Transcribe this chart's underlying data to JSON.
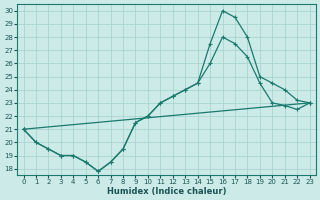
{
  "xlabel": "Humidex (Indice chaleur)",
  "bg_color": "#cceae7",
  "grid_color": "#aad4d0",
  "line_color": "#1a7a6e",
  "xlim": [
    -0.5,
    23.5
  ],
  "ylim": [
    17.5,
    30.5
  ],
  "xticks": [
    0,
    1,
    2,
    3,
    4,
    5,
    6,
    7,
    8,
    9,
    10,
    11,
    12,
    13,
    14,
    15,
    16,
    17,
    18,
    19,
    20,
    21,
    22,
    23
  ],
  "yticks": [
    18,
    19,
    20,
    21,
    22,
    23,
    24,
    25,
    26,
    27,
    28,
    29,
    30
  ],
  "line1_x": [
    0,
    1,
    2,
    3,
    4,
    5,
    6,
    7,
    8,
    9,
    10,
    11,
    12,
    13,
    14,
    15,
    16,
    17,
    18,
    19,
    20,
    21,
    22,
    23
  ],
  "line1_y": [
    21,
    20,
    19.5,
    19,
    19,
    18.5,
    17.8,
    18.5,
    19.5,
    21.5,
    22,
    23,
    23.5,
    24,
    24.5,
    27.5,
    30,
    29.5,
    28,
    25,
    24.5,
    24,
    23.2,
    23
  ],
  "line2_x": [
    0,
    1,
    2,
    3,
    4,
    5,
    6,
    7,
    8,
    9,
    10,
    11,
    12,
    13,
    14,
    15,
    16,
    17,
    18,
    19,
    20,
    21,
    22,
    23
  ],
  "line2_y": [
    21,
    20,
    19.5,
    19,
    19,
    18.5,
    17.8,
    18.5,
    19.5,
    21.5,
    22,
    23,
    23.5,
    24,
    24.5,
    26,
    28,
    27.5,
    26.5,
    24.5,
    23,
    22.8,
    22.5,
    23
  ],
  "line3_x": [
    0,
    23
  ],
  "line3_y": [
    21,
    23
  ]
}
